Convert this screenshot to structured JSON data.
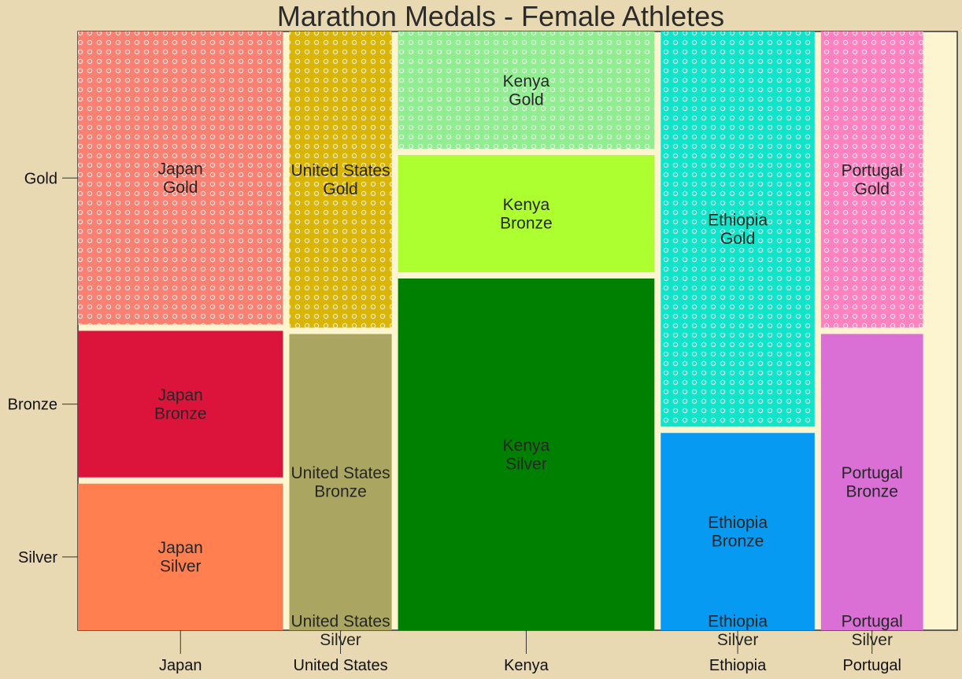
{
  "chart_data": {
    "type": "mosaic",
    "title": "Marathon Medals - Female Athletes",
    "x_categories": [
      "Japan",
      "United States",
      "Kenya",
      "Ethiopia",
      "Portugal"
    ],
    "y_categories": [
      "Gold",
      "Bronze",
      "Silver"
    ],
    "x_proportions": [
      0.2401,
      0.1199,
      0.3002,
      0.1802,
      0.1196
    ],
    "tiles": [
      {
        "country": "Japan",
        "medal": "Gold",
        "label": "Japan\nGold",
        "proportion": 0.5,
        "color": "#fa8072",
        "hatch": true
      },
      {
        "country": "Japan",
        "medal": "Bronze",
        "label": "Japan\nBronze",
        "proportion": 0.25,
        "color": "#dc143c",
        "hatch": false
      },
      {
        "country": "Japan",
        "medal": "Silver",
        "label": "Japan\nSilver",
        "proportion": 0.25,
        "color": "#ff7f50",
        "hatch": false
      },
      {
        "country": "United States",
        "medal": "Gold",
        "label": "United States\nGold",
        "proportion": 0.5,
        "color": "#dab505",
        "hatch": true
      },
      {
        "country": "United States",
        "medal": "Bronze",
        "label": "United States\nBronze",
        "proportion": 0.5,
        "color": "#aaa662",
        "hatch": false
      },
      {
        "country": "United States",
        "medal": "Silver",
        "label": "United States\nSilver",
        "proportion": 0.0,
        "color": "#aaa662",
        "hatch": false
      },
      {
        "country": "Kenya",
        "medal": "Gold",
        "label": "Kenya\nGold",
        "proportion": 0.2,
        "color": "#90ee90",
        "hatch": true
      },
      {
        "country": "Kenya",
        "medal": "Bronze",
        "label": "Kenya\nBronze",
        "proportion": 0.2,
        "color": "#adff2f",
        "hatch": false
      },
      {
        "country": "Kenya",
        "medal": "Silver",
        "label": "Kenya\nSilver",
        "proportion": 0.6,
        "color": "#008000",
        "hatch": false
      },
      {
        "country": "Ethiopia",
        "medal": "Gold",
        "label": "Ethiopia\nGold",
        "proportion": 0.667,
        "color": "#10e5c9",
        "hatch": true
      },
      {
        "country": "Ethiopia",
        "medal": "Bronze",
        "label": "Ethiopia\nBronze",
        "proportion": 0.333,
        "color": "#069af3",
        "hatch": false
      },
      {
        "country": "Ethiopia",
        "medal": "Silver",
        "label": "Ethiopia\nSilver",
        "proportion": 0.0,
        "color": "#069af3",
        "hatch": false
      },
      {
        "country": "Portugal",
        "medal": "Gold",
        "label": "Portugal\nGold",
        "proportion": 0.5,
        "color": "#ff81c0",
        "hatch": true
      },
      {
        "country": "Portugal",
        "medal": "Bronze",
        "label": "Portugal\nBronze",
        "proportion": 0.5,
        "color": "#da70d6",
        "hatch": false
      },
      {
        "country": "Portugal",
        "medal": "Silver",
        "label": "Portugal\nSilver",
        "proportion": 0.0,
        "color": "#da70d6",
        "hatch": false
      }
    ],
    "colors": {
      "page_background": "#e8d9b2",
      "plot_background": "#fdf5d0"
    }
  }
}
